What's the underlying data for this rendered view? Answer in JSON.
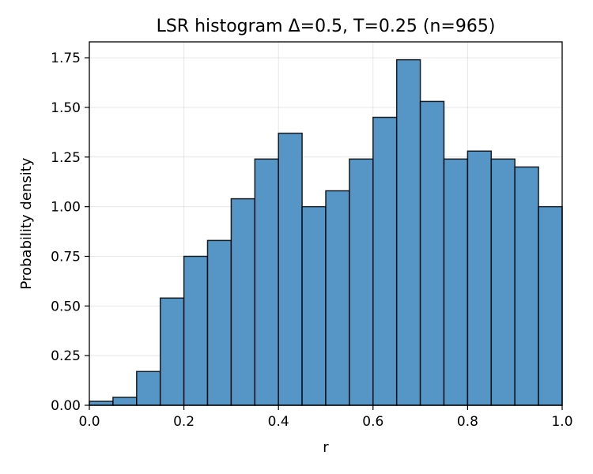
{
  "chart_data": {
    "type": "bar",
    "title": "LSR histogram Δ=0.5, T=0.25 (n=965)",
    "xlabel": "r",
    "ylabel": "Probability density",
    "xlim": [
      0.0,
      1.0
    ],
    "ylim": [
      0.0,
      1.83
    ],
    "grid": true,
    "color": "#5596c6",
    "bin_edges": [
      0.0,
      0.05,
      0.1,
      0.15,
      0.2,
      0.25,
      0.3,
      0.35,
      0.4,
      0.45,
      0.5,
      0.55,
      0.6,
      0.65,
      0.7,
      0.75,
      0.8,
      0.85,
      0.9,
      0.95,
      1.0
    ],
    "values": [
      0.02,
      0.04,
      0.17,
      0.54,
      0.75,
      0.83,
      1.04,
      1.24,
      1.37,
      1.0,
      1.08,
      1.24,
      1.45,
      1.74,
      1.53,
      1.24,
      1.28,
      1.24,
      1.2,
      1.0
    ],
    "x_ticks": [
      0.0,
      0.2,
      0.4,
      0.6,
      0.8,
      1.0
    ],
    "x_tick_labels": [
      "0.0",
      "0.2",
      "0.4",
      "0.6",
      "0.8",
      "1.0"
    ],
    "y_ticks": [
      0.0,
      0.25,
      0.5,
      0.75,
      1.0,
      1.25,
      1.5,
      1.75
    ],
    "y_tick_labels": [
      "0.00",
      "0.25",
      "0.50",
      "0.75",
      "1.00",
      "1.25",
      "1.50",
      "1.75"
    ]
  }
}
